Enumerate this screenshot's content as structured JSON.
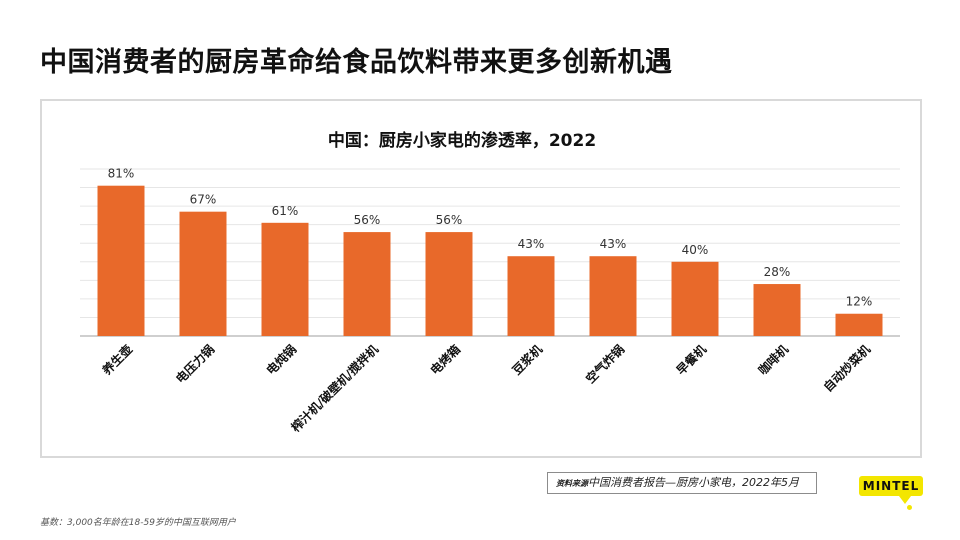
{
  "page": {
    "title": "中国消费者的厨房革命给食品饮料带来更多创新机遇",
    "source_prefix": "资料来源",
    "source_text": "中国消费者报告—厨房小家电，2022年5月",
    "footnote": "基数：3,000名年龄在18-59岁的中国互联网用户",
    "logo_text": "MINTEL"
  },
  "colors": {
    "bar": "#e8692a",
    "gridline": "#e6e6e6",
    "baseline": "#bfbfbf",
    "logo": "#f3e600"
  },
  "chart_data": {
    "type": "bar",
    "title": "中国：厨房小家电的渗透率，2022",
    "xlabel": "",
    "ylabel": "",
    "ylim": [
      0,
      90
    ],
    "grid": true,
    "categories": [
      "养生壶",
      "电压力锅",
      "电炖锅",
      "榨汁机/破壁机/搅拌机",
      "电烤箱",
      "豆浆机",
      "空气炸锅",
      "早餐机",
      "咖啡机",
      "自动炒菜机"
    ],
    "values": [
      81,
      67,
      61,
      56,
      56,
      43,
      43,
      40,
      28,
      12
    ],
    "value_labels": [
      "81%",
      "67%",
      "61%",
      "56%",
      "56%",
      "43%",
      "43%",
      "40%",
      "28%",
      "12%"
    ]
  }
}
